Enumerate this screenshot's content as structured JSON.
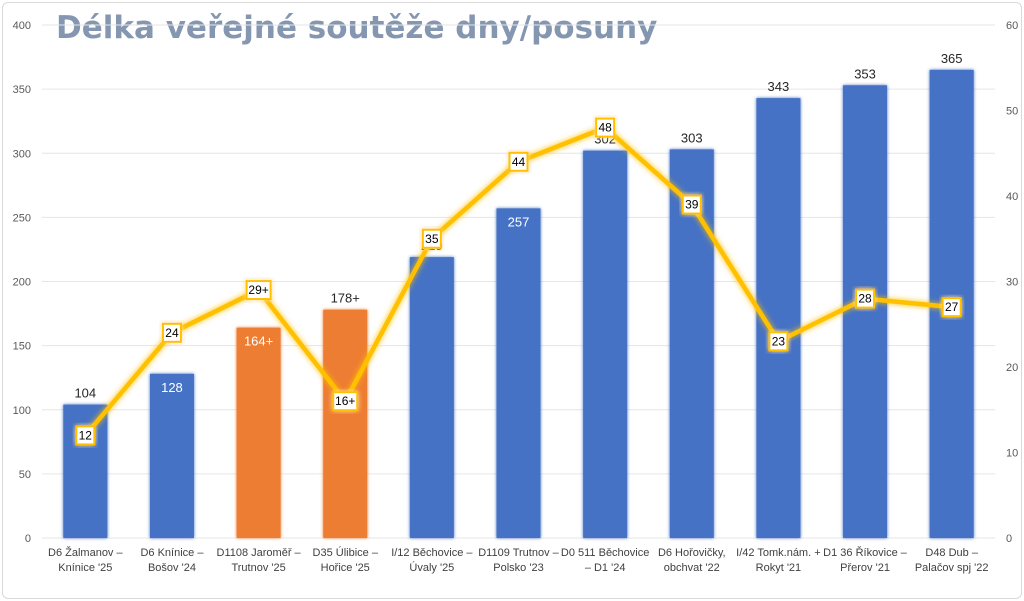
{
  "chart_data": {
    "type": "bar+line",
    "title": "Délka veřejné soutěže dny/posuny",
    "categories": [
      [
        "D6 Žalmanov –",
        "Knínice '25"
      ],
      [
        "D6 Knínice –",
        "Bošov '24"
      ],
      [
        "D1108 Jaroměř –",
        "Trutnov '25"
      ],
      [
        "D35 Úlibice –",
        "Hořice '25"
      ],
      [
        "I/12 Běchovice –",
        "Úvaly '25"
      ],
      [
        "D1109 Trutnov –",
        "Polsko '23"
      ],
      [
        "D0 511 Běchovice",
        "– D1 '24"
      ],
      [
        "D6 Hořovičky,",
        "obchvat '22"
      ],
      [
        "I/42 Tomk.nám. +",
        "Rokyt '21"
      ],
      [
        "D1 36 Říkovice –",
        "Přerov '21"
      ],
      [
        "D48 Dub –",
        "Palačov spj '22"
      ]
    ],
    "bars": {
      "values": [
        104,
        128,
        164,
        178,
        219,
        257,
        302,
        303,
        343,
        353,
        365
      ],
      "labels": [
        "104",
        "128",
        "164+",
        "178+",
        "219",
        "257",
        "302",
        "303",
        "343",
        "353",
        "365"
      ],
      "label_inside": [
        false,
        true,
        true,
        false,
        false,
        true,
        false,
        false,
        false,
        false,
        false
      ],
      "highlight": [
        false,
        false,
        true,
        true,
        false,
        false,
        false,
        false,
        false,
        false,
        false
      ],
      "color": "#4472c4",
      "highlight_color": "#ed7d31"
    },
    "line": {
      "values": [
        12,
        24,
        29,
        16,
        35,
        44,
        48,
        39,
        23,
        28,
        27
      ],
      "labels": [
        "12",
        "24",
        "29+",
        "16+",
        "35",
        "44",
        "48",
        "39",
        "23",
        "28",
        "27"
      ],
      "color": "#ffc000"
    },
    "y_left": {
      "min": 0,
      "max": 400,
      "ticks": [
        "0",
        "50",
        "100",
        "150",
        "200",
        "250",
        "300",
        "350",
        "400"
      ]
    },
    "y_right": {
      "min": 0,
      "max": 60,
      "ticks": [
        "0",
        "10",
        "20",
        "30",
        "40",
        "50",
        "60"
      ]
    },
    "grid": true,
    "legend": "none"
  }
}
